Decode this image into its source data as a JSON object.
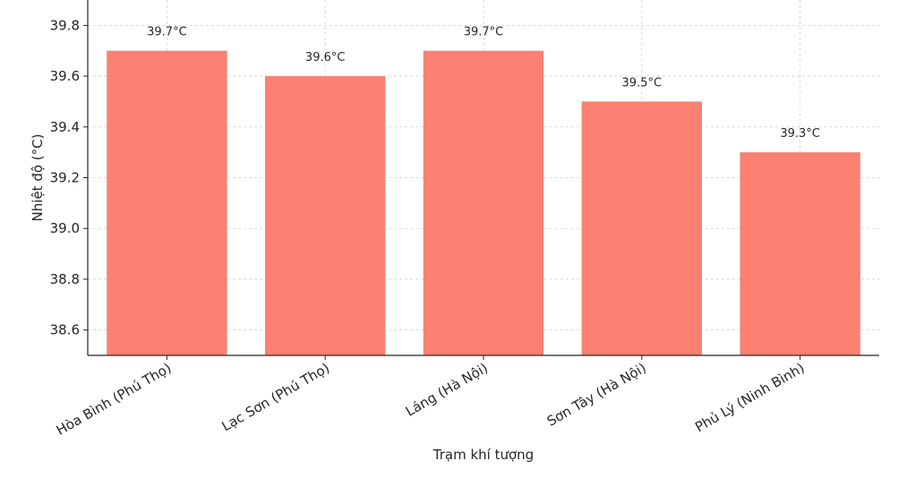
{
  "chart_data": {
    "type": "bar",
    "categories": [
      "Hòa Bình (Phú Thọ)",
      "Lạc Sơn (Phú Thọ)",
      "Láng (Hà Nội)",
      "Sơn Tây (Hà Nội)",
      "Phủ Lý (Ninh Bình)"
    ],
    "values": [
      39.7,
      39.6,
      39.7,
      39.5,
      39.3
    ],
    "data_labels": [
      "39.7°C",
      "39.6°C",
      "39.7°C",
      "39.5°C",
      "39.3°C"
    ],
    "xlabel": "Trạm khí tượng",
    "ylabel": "Nhiệt độ (°C)",
    "ylim": [
      38.5,
      39.9
    ],
    "yticks": [
      38.6,
      38.8,
      39.0,
      39.2,
      39.4,
      39.6,
      39.8
    ],
    "ytick_labels": [
      "38.6",
      "38.8",
      "39.0",
      "39.2",
      "39.4",
      "39.6",
      "39.8"
    ],
    "grid": true,
    "bar_color": "#fa8072",
    "grid_color": "#d0d0d0",
    "axis_color": "#262626"
  }
}
